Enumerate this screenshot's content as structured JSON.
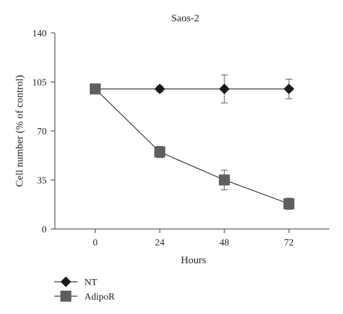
{
  "chart_data": {
    "type": "line",
    "title": "Saos-2",
    "xlabel": "Hours",
    "ylabel": "Cell number (% of control)",
    "x": [
      0,
      24,
      48,
      72
    ],
    "xlim": [
      -15,
      87
    ],
    "ylim": [
      0,
      140
    ],
    "yticks": [
      0,
      35,
      70,
      105,
      140
    ],
    "xticks": [
      0,
      24,
      48,
      72
    ],
    "grid": false,
    "legend_position": "bottom-left",
    "series": [
      {
        "name": "NT",
        "marker": "diamond",
        "color": "#1a1a1a",
        "values": [
          100,
          100,
          100,
          100
        ],
        "errors": [
          3,
          2,
          10,
          7
        ]
      },
      {
        "name": "AdipoR",
        "marker": "square",
        "color": "#5f5f5f",
        "values": [
          100,
          55,
          35,
          18
        ],
        "errors": [
          3,
          4,
          7,
          4
        ]
      }
    ]
  }
}
